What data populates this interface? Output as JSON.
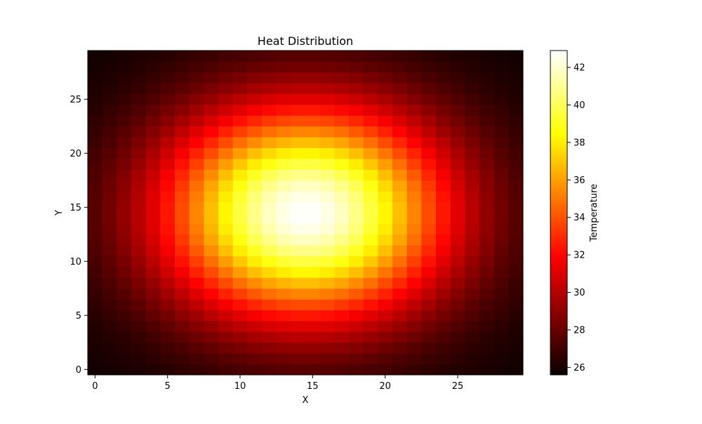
{
  "chart_data": {
    "type": "heatmap",
    "title": "Heat Distribution",
    "xlabel": "X",
    "ylabel": "Y",
    "grid": false,
    "grid_size": [
      30,
      30
    ],
    "xlim": [
      -0.5,
      29.5
    ],
    "ylim": [
      -0.5,
      29.5
    ],
    "x_ticks": [
      0,
      5,
      10,
      15,
      20,
      25
    ],
    "y_ticks": [
      0,
      5,
      10,
      15,
      20,
      25
    ],
    "colormap": "hot",
    "model": {
      "form": "gaussian",
      "base": 25.6,
      "amplitude": 17.3,
      "center": [
        14.5,
        14.5
      ],
      "sigma": [
        7.0,
        7.0
      ]
    },
    "colorbar": {
      "label": "Temperature",
      "vmin": 25.6,
      "vmax": 42.9,
      "ticks": [
        26,
        28,
        30,
        32,
        34,
        36,
        38,
        40,
        42
      ]
    }
  }
}
